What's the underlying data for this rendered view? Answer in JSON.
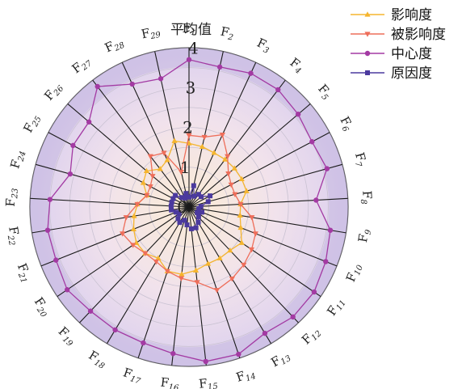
{
  "chart_data": {
    "type": "radar",
    "axis_title": "平均值",
    "categories": [
      "F1",
      "F2",
      "F3",
      "F4",
      "F5",
      "F6",
      "F7",
      "F8",
      "F9",
      "F10",
      "F11",
      "F12",
      "F13",
      "F14",
      "F15",
      "F16",
      "F17",
      "F18",
      "F19",
      "F20",
      "F21",
      "F22",
      "F23",
      "F24",
      "F25",
      "F26",
      "F27",
      "F28",
      "F29"
    ],
    "category_labels": [
      {
        "base": "F",
        "sub": "1"
      },
      {
        "base": "F",
        "sub": "2"
      },
      {
        "base": "F",
        "sub": "3"
      },
      {
        "base": "F",
        "sub": "4"
      },
      {
        "base": "F",
        "sub": "5"
      },
      {
        "base": "F",
        "sub": "6"
      },
      {
        "base": "F",
        "sub": "7"
      },
      {
        "base": "F",
        "sub": "8"
      },
      {
        "base": "F",
        "sub": "9"
      },
      {
        "base": "F",
        "sub": "10"
      },
      {
        "base": "F",
        "sub": "11"
      },
      {
        "base": "F",
        "sub": "12"
      },
      {
        "base": "F",
        "sub": "13"
      },
      {
        "base": "F",
        "sub": "14"
      },
      {
        "base": "F",
        "sub": "15"
      },
      {
        "base": "F",
        "sub": "16"
      },
      {
        "base": "F",
        "sub": "17"
      },
      {
        "base": "F",
        "sub": "18"
      },
      {
        "base": "F",
        "sub": "19"
      },
      {
        "base": "F",
        "sub": "20"
      },
      {
        "base": "F",
        "sub": "21"
      },
      {
        "base": "F",
        "sub": "22"
      },
      {
        "base": "F",
        "sub": "23"
      },
      {
        "base": "F",
        "sub": "24"
      },
      {
        "base": "F",
        "sub": "25"
      },
      {
        "base": "F",
        "sub": "26"
      },
      {
        "base": "F",
        "sub": "27"
      },
      {
        "base": "F",
        "sub": "28"
      },
      {
        "base": "F",
        "sub": "29"
      }
    ],
    "rmax": 4,
    "ticks": [
      "0",
      "1",
      "2",
      "3",
      "4"
    ],
    "tick_values": [
      0,
      1,
      2,
      3,
      4
    ],
    "grid": true,
    "legend_position": "top-right",
    "series": [
      {
        "name": "影响度",
        "color": "#f5b52e",
        "marker": "triangle-up",
        "values": [
          1.6,
          1.55,
          1.5,
          1.5,
          1.5,
          1.5,
          1.5,
          1.3,
          1.3,
          1.4,
          1.6,
          1.5,
          1.5,
          1.5,
          1.6,
          1.7,
          1.7,
          1.5,
          1.6,
          1.6,
          1.5,
          1.4,
          1.3,
          1.1,
          1.3,
          1.4,
          1.2,
          1.3,
          1.7
        ]
      },
      {
        "name": "被影响度",
        "color": "#ee6e5a",
        "marker": "triangle-down",
        "values": [
          1.8,
          1.8,
          2.0,
          1.6,
          1.3,
          1.2,
          1.2,
          1.3,
          1.6,
          1.8,
          1.9,
          2.0,
          2.1,
          2.2,
          1.9,
          1.8,
          1.7,
          1.6,
          1.6,
          1.7,
          1.8,
          1.6,
          1.3,
          1.1,
          1.1,
          1.2,
          1.6,
          1.5,
          0.9
        ]
      },
      {
        "name": "中心度",
        "color": "#a33aa3",
        "marker": "circle",
        "values": [
          3.7,
          3.6,
          3.7,
          3.7,
          3.6,
          3.5,
          3.6,
          3.2,
          3.6,
          3.7,
          3.8,
          3.8,
          3.7,
          3.9,
          3.9,
          3.7,
          3.6,
          3.6,
          3.6,
          3.7,
          3.6,
          3.6,
          3.5,
          3.1,
          3.3,
          3.3,
          3.8,
          3.4,
          3.3
        ]
      },
      {
        "name": "原因度",
        "color": "#4b3a9e",
        "marker": "square",
        "values": [
          0.25,
          0.55,
          0.3,
          0.4,
          0.4,
          0.6,
          0.5,
          0.3,
          0.25,
          0.35,
          0.25,
          0.35,
          0.45,
          0.55,
          0.55,
          0.45,
          0.35,
          0.45,
          0.4,
          0.3,
          0.35,
          0.45,
          0.45,
          0.45,
          0.45,
          0.45,
          0.3,
          0.25,
          0.35
        ]
      }
    ]
  }
}
